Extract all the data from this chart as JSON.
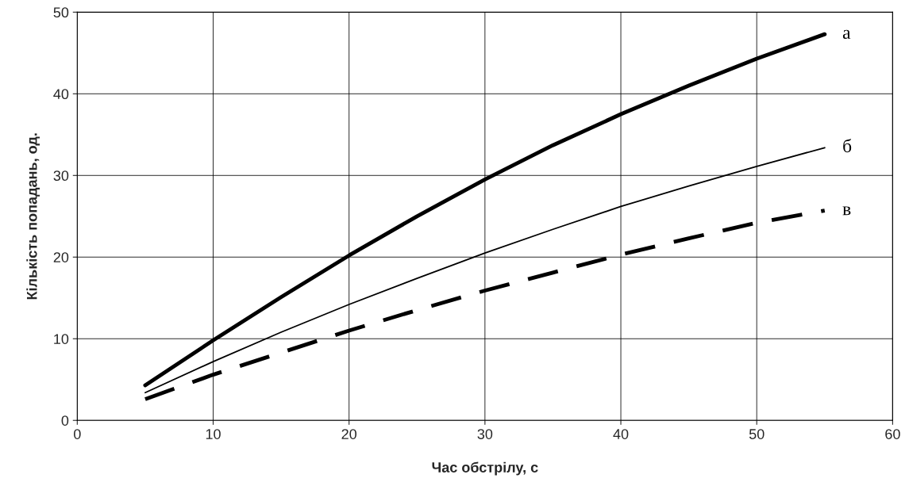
{
  "chart_data": {
    "type": "line",
    "xlabel": "Час обстрілу, с",
    "ylabel": "Кількість попадань, од.",
    "xlim": [
      0,
      60
    ],
    "ylim": [
      0,
      50
    ],
    "xticks": [
      0,
      10,
      20,
      30,
      40,
      50,
      60
    ],
    "yticks": [
      0,
      10,
      20,
      30,
      40,
      50
    ],
    "grid": true,
    "legend": false,
    "marker": "none",
    "x": [
      5,
      10,
      15,
      20,
      25,
      30,
      35,
      40,
      45,
      50,
      55
    ],
    "series": [
      {
        "name": "а",
        "color": "#000000",
        "line_style": "solid",
        "values": [
          4.3,
          9.8,
          15.1,
          20.2,
          25.0,
          29.5,
          33.7,
          37.5,
          41.0,
          44.3,
          47.3
        ]
      },
      {
        "name": "б",
        "color": "#000000",
        "line_style": "solid",
        "values": [
          3.4,
          7.2,
          10.8,
          14.2,
          17.4,
          20.5,
          23.4,
          26.2,
          28.7,
          31.1,
          33.4
        ]
      },
      {
        "name": "в",
        "color": "#000000",
        "line_style": "dashed",
        "values": [
          2.6,
          5.6,
          8.3,
          11.0,
          13.5,
          15.9,
          18.1,
          20.3,
          22.3,
          24.2,
          25.7
        ]
      }
    ]
  }
}
